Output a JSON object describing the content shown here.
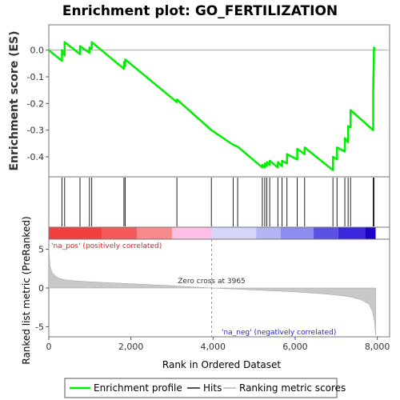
{
  "chart_data": {
    "type": "line",
    "title": "Enrichment plot: GO_FERTILIZATION",
    "ylabel_top": "Enrichment score (ES)",
    "ylabel_bottom": "Ranked list metric (PreRanked)",
    "xlabel": "Rank in Ordered Dataset",
    "x_ticks": [
      0,
      2000,
      4000,
      6000,
      8000
    ],
    "x_tick_labels": [
      "0",
      "2,000",
      "4,000",
      "6,000",
      "8,000"
    ],
    "xlim": [
      0,
      8300
    ],
    "es_ylim": [
      -0.475,
      0.095
    ],
    "es_y_ticks": [
      0.0,
      -0.1,
      -0.2,
      -0.3,
      -0.4
    ],
    "es_y_tick_labels": [
      "0.0",
      "-0.1",
      "-0.2",
      "-0.3",
      "-0.4"
    ],
    "metric_ylim": [
      -6.3,
      6.3
    ],
    "metric_y_ticks": [
      5,
      0,
      -5
    ],
    "metric_y_tick_labels": [
      "5",
      "0",
      "-5"
    ],
    "zero_cross": 3965,
    "zero_cross_label": "Zero cross at 3965",
    "pos_label": "'na_pos' (positively correlated)",
    "neg_label": "'na_neg' (negatively correlated)",
    "n_genes": 7960,
    "hits": [
      320,
      385,
      760,
      990,
      1045,
      1830,
      1860,
      3120,
      3960,
      4490,
      4600,
      5200,
      5260,
      5310,
      5380,
      5580,
      5680,
      5800,
      6050,
      6230,
      6920,
      7020,
      7210,
      7290,
      7350,
      7900,
      7920
    ],
    "es_profile": {
      "x": [
        0,
        320,
        321,
        385,
        386,
        760,
        761,
        990,
        991,
        1045,
        1046,
        1830,
        1831,
        1860,
        1861,
        3120,
        3121,
        3960,
        4490,
        4600,
        5200,
        5201,
        5260,
        5261,
        5310,
        5311,
        5380,
        5381,
        5580,
        5581,
        5680,
        5681,
        5800,
        5801,
        6050,
        6051,
        6230,
        6231,
        6920,
        6921,
        7020,
        7021,
        7210,
        7211,
        7290,
        7291,
        7350,
        7351,
        7900,
        7901,
        7920,
        7921,
        7960
      ],
      "y": [
        0.0,
        -0.04,
        0.0,
        -0.02,
        0.03,
        -0.015,
        0.015,
        -0.01,
        0.01,
        0.005,
        0.03,
        -0.07,
        -0.045,
        -0.06,
        -0.035,
        -0.195,
        -0.185,
        -0.3,
        -0.355,
        -0.362,
        -0.44,
        -0.43,
        -0.44,
        -0.425,
        -0.435,
        -0.42,
        -0.43,
        -0.415,
        -0.44,
        -0.42,
        -0.435,
        -0.415,
        -0.425,
        -0.39,
        -0.41,
        -0.37,
        -0.39,
        -0.365,
        -0.45,
        -0.4,
        -0.41,
        -0.365,
        -0.38,
        -0.33,
        -0.345,
        -0.285,
        -0.29,
        -0.225,
        -0.3,
        -0.15,
        0.01,
        0.005,
        0.005
      ]
    },
    "metric_shape": [
      [
        0,
        5.2
      ],
      [
        30,
        2.8
      ],
      [
        80,
        2.0
      ],
      [
        150,
        1.6
      ],
      [
        250,
        1.25
      ],
      [
        400,
        1.05
      ],
      [
        700,
        0.9
      ],
      [
        1200,
        0.75
      ],
      [
        2000,
        0.55
      ],
      [
        3000,
        0.3
      ],
      [
        3965,
        0.0
      ],
      [
        5000,
        -0.25
      ],
      [
        6000,
        -0.5
      ],
      [
        6800,
        -0.8
      ],
      [
        7300,
        -1.1
      ],
      [
        7600,
        -1.5
      ],
      [
        7800,
        -2.1
      ],
      [
        7880,
        -3.0
      ],
      [
        7930,
        -4.2
      ],
      [
        7960,
        -6.1
      ]
    ],
    "band_colors": [
      "#f04040",
      "#f45a5a",
      "#f78a8a",
      "#fcc0e6",
      "#d6d6fa",
      "#b4b4f5",
      "#8c8cee",
      "#5a50e4",
      "#3c28dc",
      "#1a00c8"
    ],
    "band_edges": [
      0,
      1300,
      2150,
      3000,
      3965,
      5050,
      5650,
      6450,
      7050,
      7700,
      7960
    ],
    "line_color": "#00ee00",
    "legend": [
      "Enrichment profile",
      "Hits",
      "Ranking metric scores"
    ]
  }
}
